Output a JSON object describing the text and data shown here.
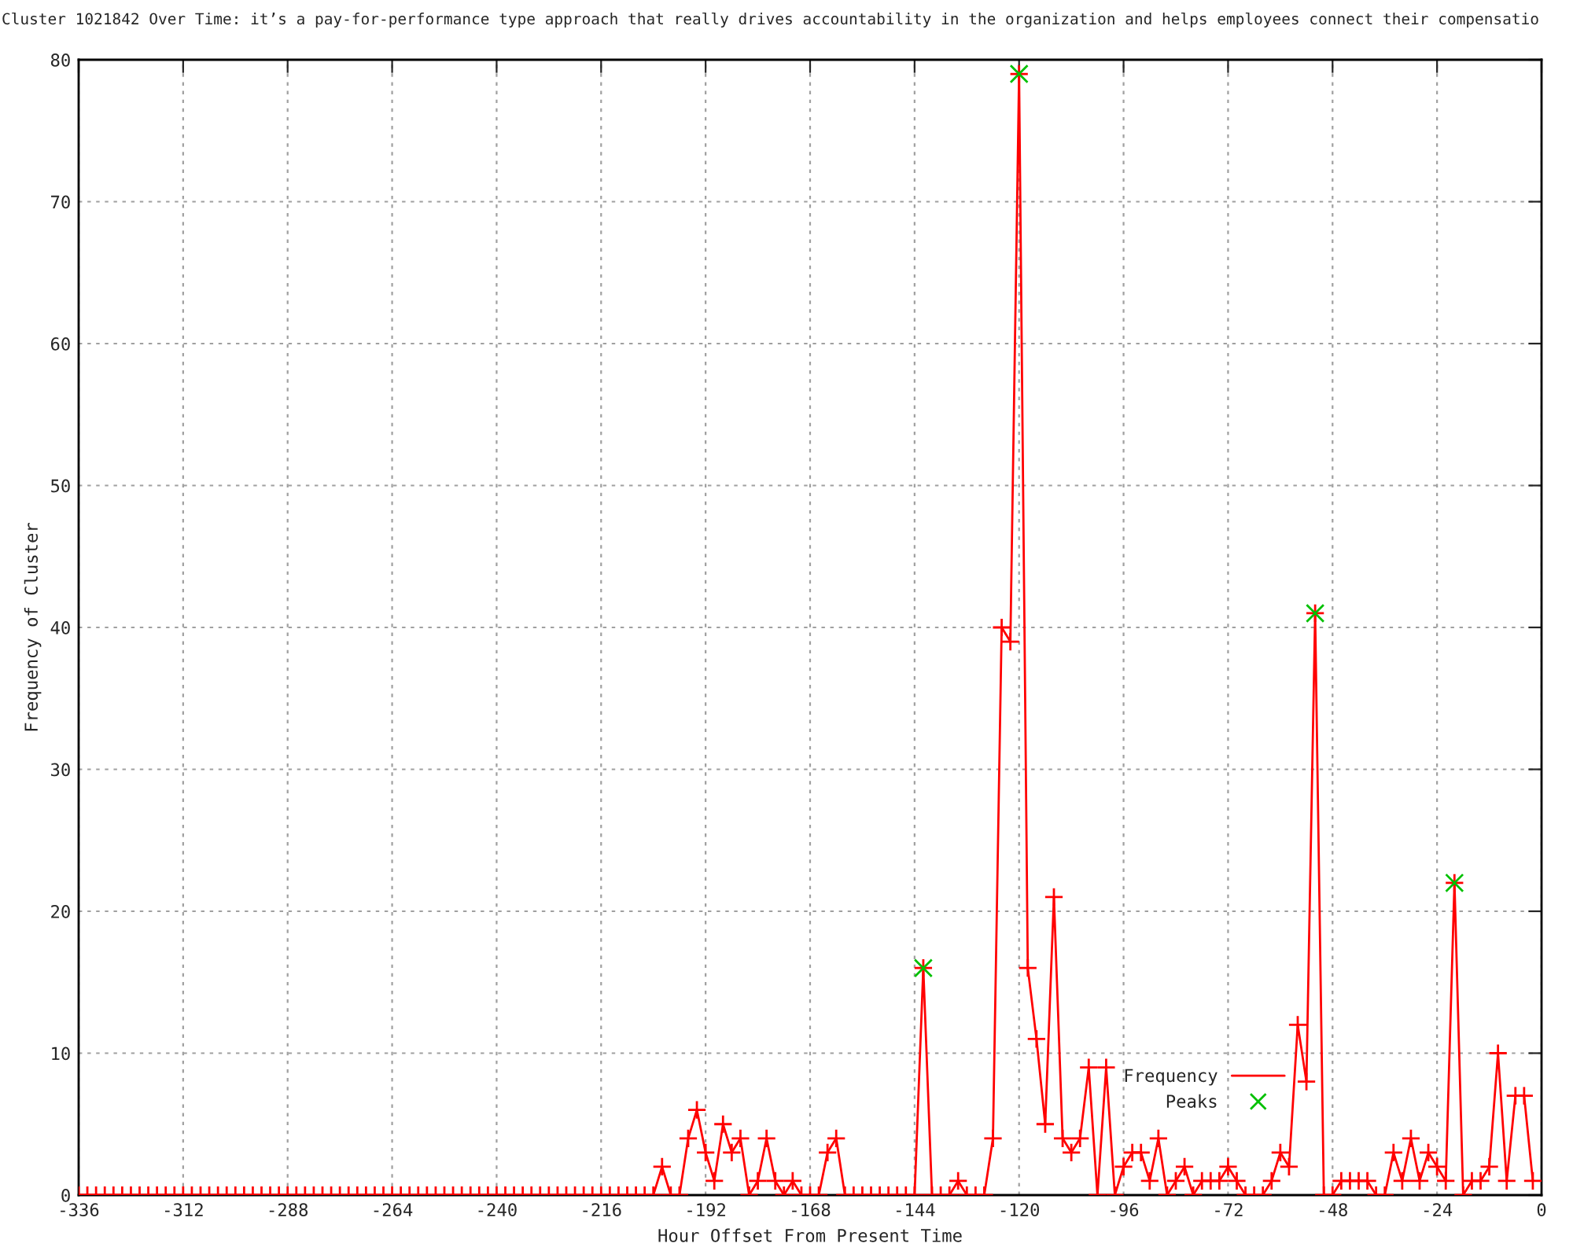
{
  "chart_data": {
    "type": "line",
    "title": "Cluster 1021842 Over Time: it’s a pay-for-performance type approach that really drives accountability in the organization and helps employees connect their compensatio",
    "xlabel": "Hour Offset From Present Time",
    "ylabel": "Frequency of Cluster",
    "x": [
      -336,
      -334,
      -332,
      -330,
      -328,
      -326,
      -324,
      -322,
      -320,
      -318,
      -316,
      -314,
      -312,
      -310,
      -308,
      -306,
      -304,
      -302,
      -300,
      -298,
      -296,
      -294,
      -292,
      -290,
      -288,
      -286,
      -284,
      -282,
      -280,
      -278,
      -276,
      -274,
      -272,
      -270,
      -268,
      -266,
      -264,
      -262,
      -260,
      -258,
      -256,
      -254,
      -252,
      -250,
      -248,
      -246,
      -244,
      -242,
      -240,
      -238,
      -236,
      -234,
      -232,
      -230,
      -228,
      -226,
      -224,
      -222,
      -220,
      -218,
      -216,
      -214,
      -212,
      -210,
      -208,
      -206,
      -204,
      -202,
      -200,
      -198,
      -196,
      -194,
      -192,
      -190,
      -188,
      -186,
      -184,
      -182,
      -180,
      -178,
      -176,
      -174,
      -172,
      -170,
      -168,
      -166,
      -164,
      -162,
      -160,
      -158,
      -156,
      -154,
      -152,
      -150,
      -148,
      -146,
      -144,
      -142,
      -140,
      -138,
      -136,
      -134,
      -132,
      -130,
      -128,
      -126,
      -124,
      -122,
      -120,
      -118,
      -116,
      -114,
      -112,
      -110,
      -108,
      -106,
      -104,
      -102,
      -100,
      -98,
      -96,
      -94,
      -92,
      -90,
      -88,
      -86,
      -84,
      -82,
      -80,
      -78,
      -76,
      -74,
      -72,
      -70,
      -68,
      -66,
      -64,
      -62,
      -60,
      -58,
      -56,
      -54,
      -52,
      -50,
      -48,
      -46,
      -44,
      -42,
      -40,
      -38,
      -36,
      -34,
      -32,
      -30,
      -28,
      -26,
      -24,
      -22,
      -20,
      -18,
      -16,
      -14,
      -12,
      -10,
      -8,
      -6,
      -4,
      -2
    ],
    "series": [
      {
        "name": "Frequency",
        "color": "#ff0000",
        "marker": "cross",
        "values": [
          0,
          0,
          0,
          0,
          0,
          0,
          0,
          0,
          0,
          0,
          0,
          0,
          0,
          0,
          0,
          0,
          0,
          0,
          0,
          0,
          0,
          0,
          0,
          0,
          0,
          0,
          0,
          0,
          0,
          0,
          0,
          0,
          0,
          0,
          0,
          0,
          0,
          0,
          0,
          0,
          0,
          0,
          0,
          0,
          0,
          0,
          0,
          0,
          0,
          0,
          0,
          0,
          0,
          0,
          0,
          0,
          0,
          0,
          0,
          0,
          0,
          0,
          0,
          0,
          0,
          0,
          0,
          2,
          0,
          0,
          4,
          6,
          3,
          1,
          5,
          3,
          4,
          0,
          1,
          4,
          1,
          0,
          1,
          0,
          0,
          0,
          3,
          4,
          0,
          0,
          0,
          0,
          0,
          0,
          0,
          0,
          0,
          16,
          0,
          0,
          0,
          1,
          0,
          0,
          0,
          4,
          40,
          39,
          79,
          16,
          11,
          5,
          21,
          4,
          3,
          4,
          9,
          0,
          9,
          0,
          2,
          3,
          3,
          1,
          4,
          0,
          1,
          2,
          0,
          1,
          1,
          1,
          2,
          1,
          0,
          0,
          0,
          1,
          3,
          2,
          12,
          8,
          41,
          0,
          0,
          1,
          1,
          1,
          1,
          0,
          0,
          3,
          1,
          4,
          1,
          3,
          2,
          1,
          22,
          0,
          1,
          1,
          2,
          10,
          1,
          7,
          7,
          1
        ]
      },
      {
        "name": "Peaks",
        "type": "scatter",
        "color": "#00c000",
        "marker": "cross",
        "x": [
          -142,
          -120,
          -52,
          -20
        ],
        "values": [
          16,
          79,
          41,
          22
        ]
      }
    ],
    "xlim": [
      -336,
      0
    ],
    "xticks": [
      -336,
      -312,
      -288,
      -264,
      -240,
      -216,
      -192,
      -168,
      -144,
      -120,
      -96,
      -72,
      -48,
      -24,
      0
    ],
    "ylim": [
      0,
      80
    ],
    "yticks": [
      0,
      10,
      20,
      30,
      40,
      50,
      60,
      70,
      80
    ],
    "grid": true,
    "legend": "bottom right"
  }
}
